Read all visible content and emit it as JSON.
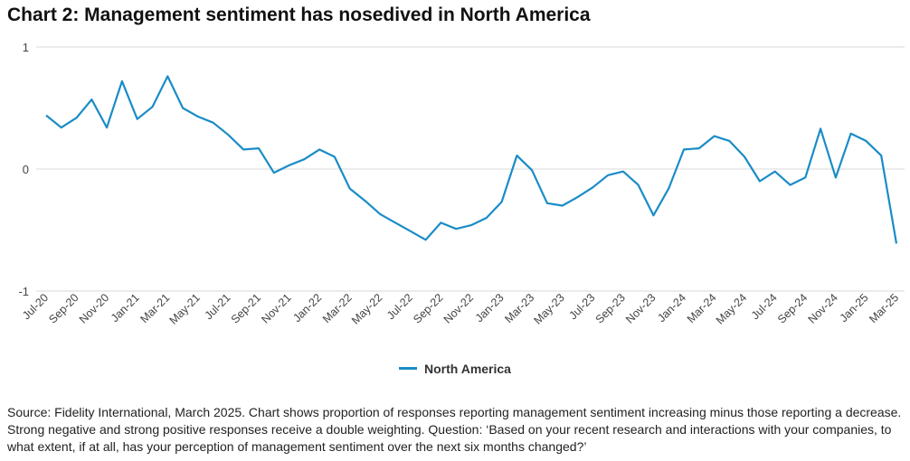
{
  "title": "Chart 2: Management sentiment has nosedived in North America",
  "source": "Source: Fidelity International, March 2025. Chart shows proportion of responses reporting management sentiment increasing minus those reporting a decrease. Strong negative and strong positive responses receive a double weighting. Question: ‘Based on your recent research and interactions with your companies, to what extent, if at all, has your perception of management sentiment over the next six months changed?’",
  "chart_data": {
    "type": "line",
    "title": "Chart 2: Management sentiment has nosedived in North America",
    "xlabel": "",
    "ylabel": "",
    "ylim": [
      -1,
      1
    ],
    "yticks": [
      "1",
      "0",
      "-1"
    ],
    "grid": "horizontal",
    "legend_position": "bottom",
    "line_color": "#1a8cc7",
    "x": [
      "Jul-20",
      "Aug-20",
      "Sep-20",
      "Oct-20",
      "Nov-20",
      "Dec-20",
      "Jan-21",
      "Feb-21",
      "Mar-21",
      "Apr-21",
      "May-21",
      "Jun-21",
      "Jul-21",
      "Aug-21",
      "Sep-21",
      "Oct-21",
      "Nov-21",
      "Dec-21",
      "Jan-22",
      "Feb-22",
      "Mar-22",
      "Apr-22",
      "May-22",
      "Jun-22",
      "Jul-22",
      "Aug-22",
      "Sep-22",
      "Oct-22",
      "Nov-22",
      "Dec-22",
      "Jan-23",
      "Feb-23",
      "Mar-23",
      "Apr-23",
      "May-23",
      "Jun-23",
      "Jul-23",
      "Aug-23",
      "Sep-23",
      "Oct-23",
      "Nov-23",
      "Dec-23",
      "Jan-24",
      "Feb-24",
      "Mar-24",
      "Apr-24",
      "May-24",
      "Jun-24",
      "Jul-24",
      "Aug-24",
      "Sep-24",
      "Oct-24",
      "Nov-24",
      "Dec-24",
      "Jan-25",
      "Feb-25",
      "Mar-25"
    ],
    "x_tick_labels": [
      "Jul-20",
      "Sep-20",
      "Nov-20",
      "Jan-21",
      "Mar-21",
      "May-21",
      "Jul-21",
      "Sep-21",
      "Nov-21",
      "Jan-22",
      "Mar-22",
      "May-22",
      "Jul-22",
      "Sep-22",
      "Nov-22",
      "Jan-23",
      "Mar-23",
      "May-23",
      "Jul-23",
      "Sep-23",
      "Nov-23",
      "Jan-24",
      "Mar-24",
      "May-24",
      "Jul-24",
      "Sep-24",
      "Nov-24",
      "Jan-25",
      "Mar-25"
    ],
    "series": [
      {
        "name": "North America",
        "values": [
          0.44,
          0.34,
          0.42,
          0.57,
          0.34,
          0.72,
          0.41,
          0.51,
          0.76,
          0.5,
          0.43,
          0.38,
          0.28,
          0.16,
          0.17,
          -0.03,
          0.03,
          0.08,
          0.16,
          0.1,
          -0.16,
          -0.26,
          -0.37,
          -0.44,
          -0.51,
          -0.58,
          -0.44,
          -0.49,
          -0.46,
          -0.4,
          -0.27,
          0.11,
          -0.01,
          -0.28,
          -0.3,
          -0.23,
          -0.15,
          -0.05,
          -0.02,
          -0.13,
          -0.38,
          -0.16,
          0.16,
          0.17,
          0.27,
          0.23,
          0.1,
          -0.1,
          -0.02,
          -0.13,
          -0.07,
          0.33,
          -0.07,
          0.29,
          0.23,
          0.11,
          -0.61
        ]
      }
    ]
  }
}
